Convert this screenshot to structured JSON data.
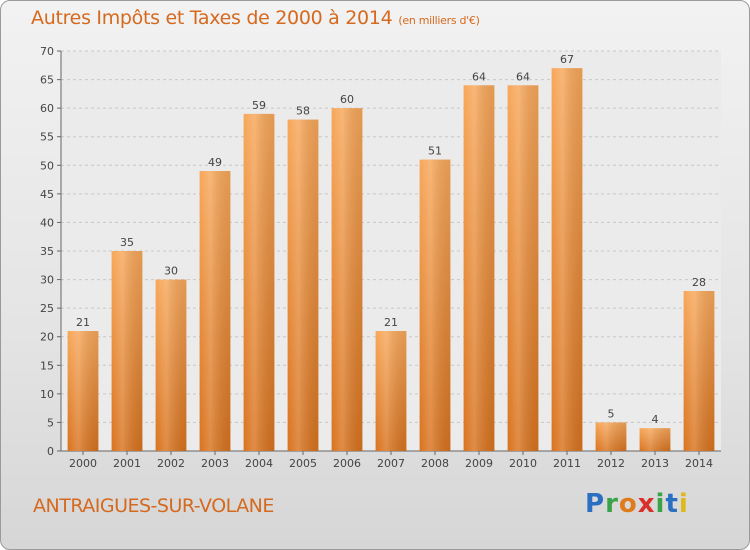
{
  "title": "Autres Impôts et Taxes de 2000 à 2014",
  "title_unit": "(en milliers d'€)",
  "commune": "ANTRAIGUES-SUR-VOLANE",
  "logo": {
    "letters": [
      "P",
      "r",
      "o",
      "x",
      "i",
      "t",
      "i"
    ]
  },
  "colors": {
    "bar_top": "#f7a75a",
    "bar_bottom": "#d8731f",
    "text": "#d5691e"
  },
  "chart_data": {
    "type": "bar",
    "title": "Autres Impôts et Taxes de 2000 à 2014",
    "xlabel": "",
    "ylabel": "",
    "categories": [
      "2000",
      "2001",
      "2002",
      "2003",
      "2004",
      "2005",
      "2006",
      "2007",
      "2008",
      "2009",
      "2010",
      "2011",
      "2012",
      "2013",
      "2014"
    ],
    "values": [
      21,
      35,
      30,
      49,
      59,
      58,
      60,
      21,
      51,
      64,
      64,
      67,
      5,
      4,
      28
    ],
    "ylim": [
      0,
      70
    ],
    "yticks": [
      0,
      5,
      10,
      15,
      20,
      25,
      30,
      35,
      40,
      45,
      50,
      55,
      60,
      65,
      70
    ],
    "grid": true,
    "legend": "none"
  }
}
